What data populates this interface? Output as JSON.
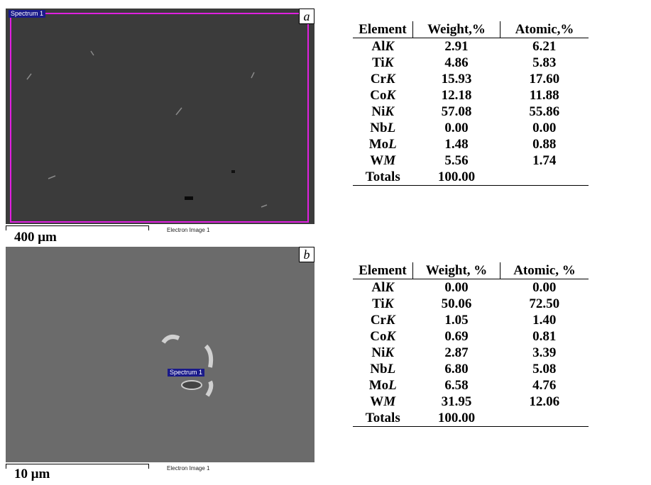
{
  "panels": [
    {
      "label": "a",
      "spectrum_label": "Spectrum 1",
      "scale_bar": "400 μm",
      "image_caption": "Electron Image 1",
      "table": {
        "header": [
          "Element",
          "Weight,%",
          "Atomic,%"
        ],
        "rows": [
          {
            "element": "Al",
            "line": "K",
            "weight": "2.91",
            "atomic": "6.21"
          },
          {
            "element": "Ti",
            "line": "K",
            "weight": "4.86",
            "atomic": "5.83"
          },
          {
            "element": "Cr",
            "line": "K",
            "weight": "15.93",
            "atomic": "17.60"
          },
          {
            "element": "Co",
            "line": "K",
            "weight": "12.18",
            "atomic": "11.88"
          },
          {
            "element": "Ni",
            "line": "K",
            "weight": "57.08",
            "atomic": "55.86"
          },
          {
            "element": "Nb",
            "line": "L",
            "weight": "0.00",
            "atomic": "0.00"
          },
          {
            "element": "Mo",
            "line": "L",
            "weight": "1.48",
            "atomic": "0.88"
          },
          {
            "element": "W",
            "line": "M",
            "weight": "5.56",
            "atomic": "1.74"
          }
        ],
        "totals": {
          "label": "Totals",
          "weight": "100.00"
        }
      }
    },
    {
      "label": "b",
      "spectrum_label": "Spectrum 1",
      "scale_bar": "10 μm",
      "image_caption": "Electron Image 1",
      "table": {
        "header": [
          "Element",
          "Weight, %",
          "Atomic, %"
        ],
        "rows": [
          {
            "element": "Al",
            "line": "K",
            "weight": "0.00",
            "atomic": "0.00"
          },
          {
            "element": "Ti",
            "line": "K",
            "weight": "50.06",
            "atomic": "72.50"
          },
          {
            "element": "Cr",
            "line": "K",
            "weight": "1.05",
            "atomic": "1.40"
          },
          {
            "element": "Co",
            "line": "K",
            "weight": "0.69",
            "atomic": "0.81"
          },
          {
            "element": "Ni",
            "line": "K",
            "weight": "2.87",
            "atomic": "3.39"
          },
          {
            "element": "Nb",
            "line": "L",
            "weight": "6.80",
            "atomic": "5.08"
          },
          {
            "element": "Mo",
            "line": "L",
            "weight": "6.58",
            "atomic": "4.76"
          },
          {
            "element": "W",
            "line": "M",
            "weight": "31.95",
            "atomic": "12.06"
          }
        ],
        "totals": {
          "label": "Totals",
          "weight": "100.00"
        }
      }
    }
  ]
}
